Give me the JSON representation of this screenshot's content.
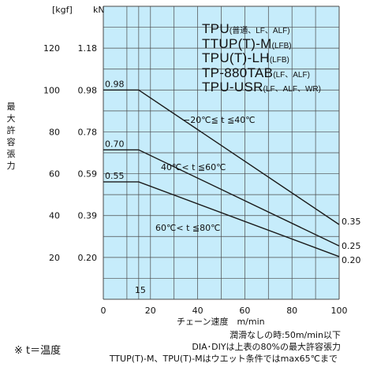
{
  "chart_data": {
    "type": "line",
    "title": "",
    "xlabel": "チェーン速度　m/min",
    "ylabel_chars": [
      "最",
      "大",
      "許",
      "容",
      "張",
      "力"
    ],
    "unit_kgf": "[kgf]",
    "unit_kn": "kN",
    "xlim": [
      0,
      100
    ],
    "ylim": [
      0,
      140
    ],
    "x_ticks": [
      "0",
      "20",
      "40",
      "60",
      "80",
      "100"
    ],
    "y_ticks_kgf": [
      {
        "v": 120,
        "label": "120"
      },
      {
        "v": 100,
        "label": "100"
      },
      {
        "v": 80,
        "label": "80"
      },
      {
        "v": 60,
        "label": "60"
      },
      {
        "v": 40,
        "label": "40"
      },
      {
        "v": 20,
        "label": "20"
      }
    ],
    "y_ticks_kn": [
      {
        "v": 120,
        "label": "1.18"
      },
      {
        "v": 100,
        "label": "0.98"
      },
      {
        "v": 80,
        "label": "0.78"
      },
      {
        "v": 60,
        "label": "0.59"
      },
      {
        "v": 40,
        "label": "0.39"
      },
      {
        "v": 20,
        "label": "0.20"
      }
    ],
    "grid": true,
    "x_marker": {
      "x": 15,
      "label": "15"
    },
    "series": [
      {
        "name": "−20℃≦ t ≦40℃",
        "x": [
          0,
          15,
          100
        ],
        "y": [
          100,
          100,
          35.7
        ],
        "start_label": "0.98",
        "end_label": "0.35"
      },
      {
        "name": "40℃< t ≦60℃",
        "x": [
          0,
          15,
          100
        ],
        "y": [
          71.4,
          71.4,
          25.5
        ],
        "start_label": "0.70",
        "end_label": "0.25"
      },
      {
        "name": "60℃< t ≦80℃",
        "x": [
          0,
          15,
          100
        ],
        "y": [
          56.1,
          56.1,
          20.4
        ],
        "start_label": "0.55",
        "end_label": "0.20"
      }
    ]
  },
  "legend_lines": [
    {
      "main": "TPU",
      "sub": "(普通、LF、ALF)"
    },
    {
      "main": "TTUP(T)-M",
      "sub": "(LFB)"
    },
    {
      "main": "TPU(T)-LH",
      "sub": "(LFB)"
    },
    {
      "main": "TP-880TAB",
      "sub": "(LF、ALF)"
    },
    {
      "main": "TPU-USR",
      "sub": "(LF、ALF、WR)"
    }
  ],
  "curve_labels": [
    "−20℃≦ t ≦40℃",
    "40℃< t ≦60℃",
    "60℃< t ≦80℃"
  ],
  "notes": {
    "lubrication": "潤滑なしの時:50m/min以下",
    "dia": "DIA･DIYは上表の80%の最大許容張力",
    "ttup": "TTUP(T)-M、TPU(T)-Mはウエット条件ではmax65℃まで",
    "footnote": "※ t＝温度"
  },
  "colors": {
    "plot_bg": "#c6ecfb",
    "grid": "#4a4a4a",
    "line": "#1a1a1a"
  }
}
